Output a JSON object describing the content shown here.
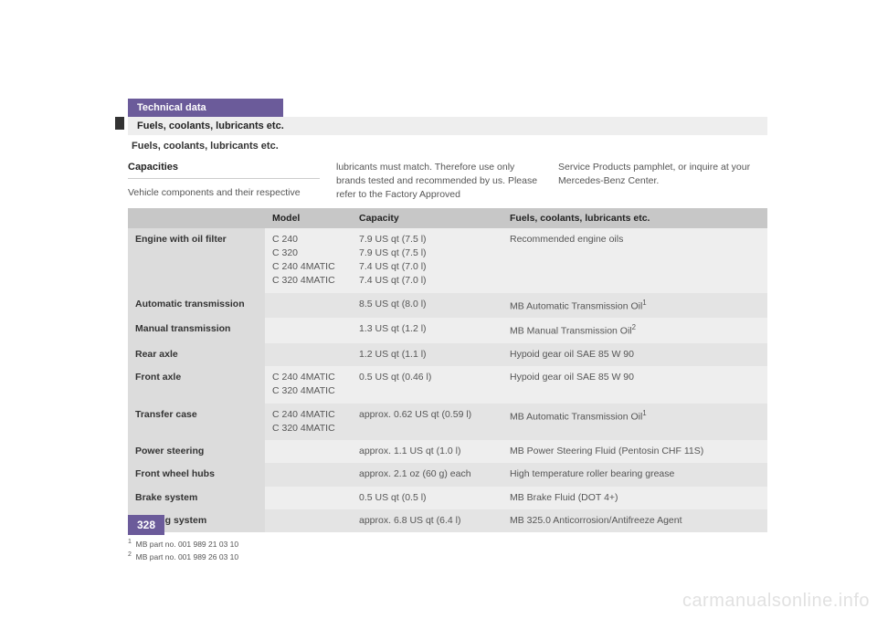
{
  "header": {
    "tab": "Technical data",
    "bar1": "Fuels, coolants, lubricants etc.",
    "bar2": "Fuels, coolants, lubricants etc."
  },
  "intro": {
    "heading": "Capacities",
    "col1": "Vehicle components and their respective",
    "col2": "lubricants must match. Therefore use only brands tested and recommended by us. Please refer to the Factory Approved",
    "col3": "Service Products pamphlet, or inquire at your Mercedes-Benz Center."
  },
  "table": {
    "headers": {
      "component": "",
      "model": "Model",
      "capacity": "Capacity",
      "fluids": "Fuels, coolants, lubricants etc."
    },
    "rows": [
      {
        "component": "Engine with oil filter",
        "model": "C 240\nC 320\nC 240 4MATIC\nC 320 4MATIC",
        "capacity": "7.9 US qt (7.5 l)\n7.9 US qt (7.5 l)\n7.4 US qt (7.0 l)\n7.4 US qt (7.0 l)",
        "fluids": "Recommended engine oils",
        "sup": ""
      },
      {
        "component": "Automatic transmission",
        "model": "",
        "capacity": "8.5 US qt (8.0 l)",
        "fluids": "MB Automatic Transmission Oil",
        "sup": "1"
      },
      {
        "component": "Manual transmission",
        "model": "",
        "capacity": "1.3 US qt (1.2 l)",
        "fluids": "MB Manual Transmission Oil",
        "sup": "2"
      },
      {
        "component": "Rear axle",
        "model": "",
        "capacity": "1.2 US qt (1.1 l)",
        "fluids": "Hypoid gear oil SAE 85 W 90",
        "sup": ""
      },
      {
        "component": "Front axle",
        "model": "C 240 4MATIC\nC 320 4MATIC",
        "capacity": "0.5 US qt (0.46 l)",
        "fluids": "Hypoid gear oil SAE 85 W 90",
        "sup": ""
      },
      {
        "component": "Transfer case",
        "model": "C 240 4MATIC\nC 320 4MATIC",
        "capacity": "approx. 0.62 US qt (0.59 l)",
        "fluids": "MB Automatic Transmission Oil",
        "sup": "1"
      },
      {
        "component": "Power steering",
        "model": "",
        "capacity": "approx. 1.1 US qt (1.0 l)",
        "fluids": "MB Power Steering Fluid (Pentosin CHF 11S)",
        "sup": ""
      },
      {
        "component": "Front wheel hubs",
        "model": "",
        "capacity": "approx. 2.1 oz (60 g) each",
        "fluids": "High temperature roller bearing grease",
        "sup": ""
      },
      {
        "component": "Brake system",
        "model": "",
        "capacity": "0.5 US qt (0.5 l)",
        "fluids": "MB Brake Fluid (DOT 4+)",
        "sup": ""
      },
      {
        "component": "Cooling system",
        "model": "",
        "capacity": "approx. 6.8 US qt (6.4 l)",
        "fluids": "MB 325.0 Anticorrosion/Antifreeze Agent",
        "sup": ""
      }
    ]
  },
  "footnotes": {
    "f1": "MB part no. 001 989 21 03 10",
    "f2": "MB part no. 001 989 26 03 10"
  },
  "page_number": "328",
  "watermark": "carmanualsonline.info",
  "colors": {
    "purple": "#6b5b9a",
    "header_gray": "#c7c7c7",
    "row_odd": "#eeeeee",
    "row_even": "#e4e4e4",
    "component_bg": "#dcdcdc"
  }
}
